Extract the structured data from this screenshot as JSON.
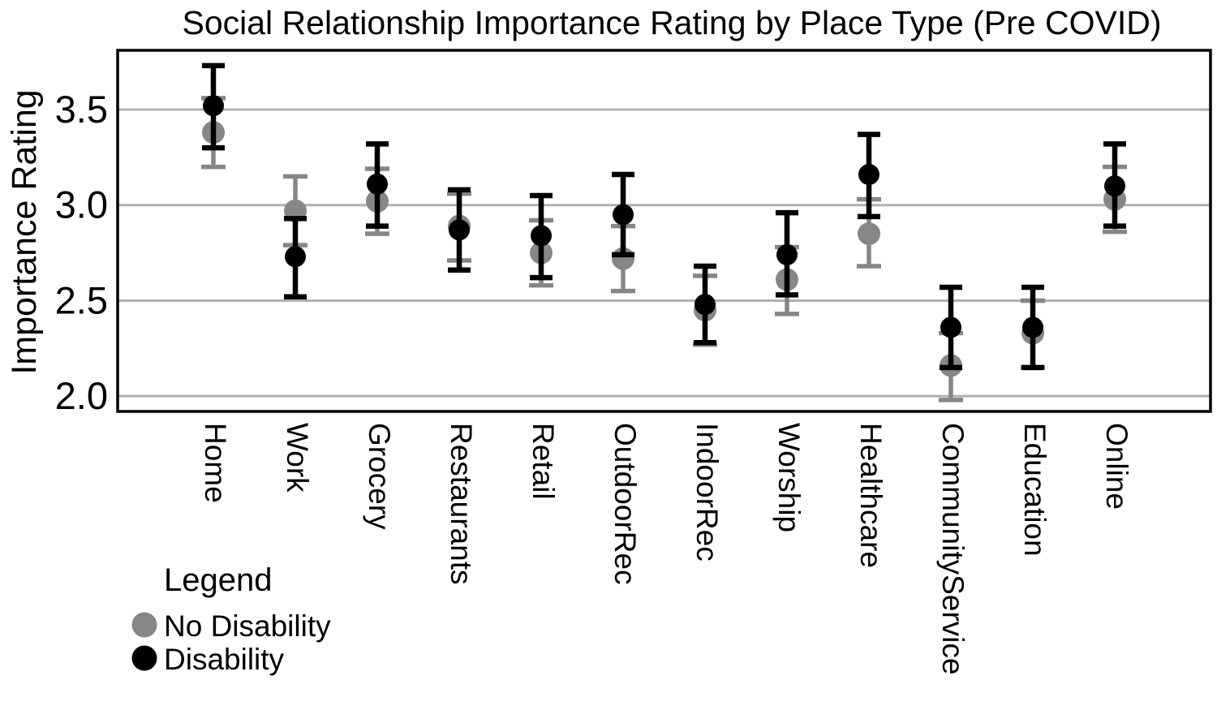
{
  "title": "Social Relationship Importance Rating by Place Type (Pre COVID)",
  "y_axis_label": "Importance Rating",
  "legend": {
    "title": "Legend",
    "items": [
      {
        "label": "No Disability",
        "color": "#868686"
      },
      {
        "label": "Disability",
        "color": "#000000"
      }
    ]
  },
  "style": {
    "background": "#ffffff",
    "grid_color": "#b0b0b0",
    "frame_color": "#000000",
    "no_disability_color": "#868686",
    "disability_color": "#000000"
  },
  "chart_data": {
    "type": "scatter",
    "title": "Social Relationship Importance Rating by Place Type (Pre COVID)",
    "xlabel": "",
    "ylabel": "Importance Rating",
    "grid": true,
    "legend_position": "bottom-left-outside",
    "ylim": [
      1.92,
      3.81
    ],
    "yticks": [
      {
        "label": "3.5",
        "value": 3.5
      },
      {
        "label": "3.0",
        "value": 3.0
      },
      {
        "label": "2.5",
        "value": 2.5
      },
      {
        "label": "2.0",
        "value": 2.0
      }
    ],
    "categories": [
      "Home",
      "Work",
      "Grocery",
      "Restaurants",
      "Retail",
      "OutdoorRec",
      "IndoorRec",
      "Worship",
      "Healthcare",
      "CommunityService",
      "Education",
      "Online"
    ],
    "series": [
      {
        "name": "No Disability",
        "color": "#868686",
        "values": [
          3.38,
          2.97,
          3.02,
          2.89,
          2.75,
          2.72,
          2.45,
          2.61,
          2.85,
          2.16,
          2.33,
          3.03
        ],
        "err_low": [
          3.2,
          2.79,
          2.85,
          2.71,
          2.58,
          2.55,
          2.27,
          2.43,
          2.68,
          1.98,
          2.15,
          2.86
        ],
        "err_high": [
          3.56,
          3.15,
          3.19,
          3.06,
          2.92,
          2.89,
          2.63,
          2.78,
          3.03,
          2.33,
          2.5,
          3.2
        ]
      },
      {
        "name": "Disability",
        "color": "#000000",
        "values": [
          3.52,
          2.73,
          3.11,
          2.87,
          2.84,
          2.95,
          2.48,
          2.74,
          3.16,
          2.36,
          2.36,
          3.1
        ],
        "err_low": [
          3.3,
          2.52,
          2.89,
          2.66,
          2.62,
          2.74,
          2.28,
          2.53,
          2.94,
          2.15,
          2.15,
          2.89
        ],
        "err_high": [
          3.73,
          2.93,
          3.32,
          3.08,
          3.05,
          3.16,
          2.68,
          2.96,
          3.37,
          2.57,
          2.57,
          3.32
        ]
      }
    ]
  }
}
